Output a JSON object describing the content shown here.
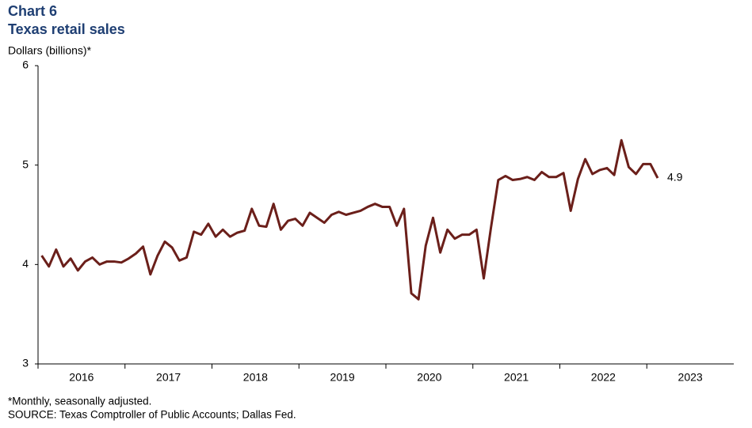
{
  "chart_data": {
    "type": "line",
    "title": "Chart 6",
    "subtitle": "Texas retail sales",
    "y_label": "Dollars (billions)*",
    "footnote": "*Monthly, seasonally adjusted.",
    "source": "SOURCE: Texas Comptroller of Public Accounts; Dallas Fed.",
    "xlim": [
      2016,
      2024
    ],
    "xticks": [
      2016,
      2017,
      2018,
      2019,
      2020,
      2021,
      2022,
      2023
    ],
    "ylim": [
      3,
      6
    ],
    "yticks": [
      3,
      4,
      5,
      6
    ],
    "grid": false,
    "x": [
      2016.042,
      2016.125,
      2016.208,
      2016.292,
      2016.375,
      2016.458,
      2016.542,
      2016.625,
      2016.708,
      2016.792,
      2016.875,
      2016.958,
      2017.042,
      2017.125,
      2017.208,
      2017.292,
      2017.375,
      2017.458,
      2017.542,
      2017.625,
      2017.708,
      2017.792,
      2017.875,
      2017.958,
      2018.042,
      2018.125,
      2018.208,
      2018.292,
      2018.375,
      2018.458,
      2018.542,
      2018.625,
      2018.708,
      2018.792,
      2018.875,
      2018.958,
      2019.042,
      2019.125,
      2019.208,
      2019.292,
      2019.375,
      2019.458,
      2019.542,
      2019.625,
      2019.708,
      2019.792,
      2019.875,
      2019.958,
      2020.042,
      2020.125,
      2020.208,
      2020.292,
      2020.375,
      2020.458,
      2020.542,
      2020.625,
      2020.708,
      2020.792,
      2020.875,
      2020.958,
      2021.042,
      2021.125,
      2021.208,
      2021.292,
      2021.375,
      2021.458,
      2021.542,
      2021.625,
      2021.708,
      2021.792,
      2021.875,
      2021.958,
      2022.042,
      2022.125,
      2022.208,
      2022.292,
      2022.375,
      2022.458,
      2022.542,
      2022.625,
      2022.708,
      2022.792,
      2022.875,
      2022.958,
      2023.042,
      2023.125
    ],
    "series": [
      {
        "color": "#6b1f1a",
        "values": [
          4.09,
          3.98,
          4.15,
          3.98,
          4.06,
          3.94,
          4.03,
          4.07,
          4.0,
          4.03,
          4.03,
          4.02,
          4.06,
          4.11,
          4.18,
          3.9,
          4.09,
          4.23,
          4.17,
          4.04,
          4.07,
          4.33,
          4.3,
          4.41,
          4.28,
          4.35,
          4.28,
          4.32,
          4.34,
          4.56,
          4.39,
          4.38,
          4.61,
          4.35,
          4.44,
          4.46,
          4.39,
          4.52,
          4.47,
          4.42,
          4.5,
          4.53,
          4.5,
          4.52,
          4.54,
          4.58,
          4.61,
          4.58,
          4.58,
          4.39,
          4.56,
          3.71,
          3.65,
          4.19,
          4.47,
          4.12,
          4.35,
          4.26,
          4.3,
          4.3,
          4.35,
          3.86,
          4.37,
          4.85,
          4.89,
          4.85,
          4.86,
          4.88,
          4.85,
          4.93,
          4.88,
          4.88,
          4.92,
          4.54,
          4.86,
          5.06,
          4.91,
          4.95,
          4.97,
          4.9,
          5.25,
          4.98,
          4.91,
          5.01,
          5.01,
          4.87
        ],
        "value_labels": [
          null,
          null,
          null,
          null,
          null,
          null,
          null,
          null,
          null,
          null,
          null,
          null,
          null,
          null,
          null,
          null,
          null,
          null,
          null,
          null,
          null,
          null,
          null,
          null,
          null,
          null,
          null,
          null,
          null,
          null,
          null,
          null,
          null,
          null,
          null,
          null,
          null,
          null,
          null,
          null,
          null,
          null,
          null,
          null,
          null,
          null,
          null,
          null,
          null,
          null,
          null,
          null,
          null,
          null,
          null,
          null,
          null,
          null,
          null,
          null,
          null,
          null,
          null,
          null,
          null,
          null,
          null,
          null,
          null,
          null,
          null,
          null,
          null,
          null,
          null,
          null,
          null,
          null,
          null,
          null,
          null,
          null,
          null,
          null,
          null,
          "4.9"
        ]
      }
    ]
  }
}
